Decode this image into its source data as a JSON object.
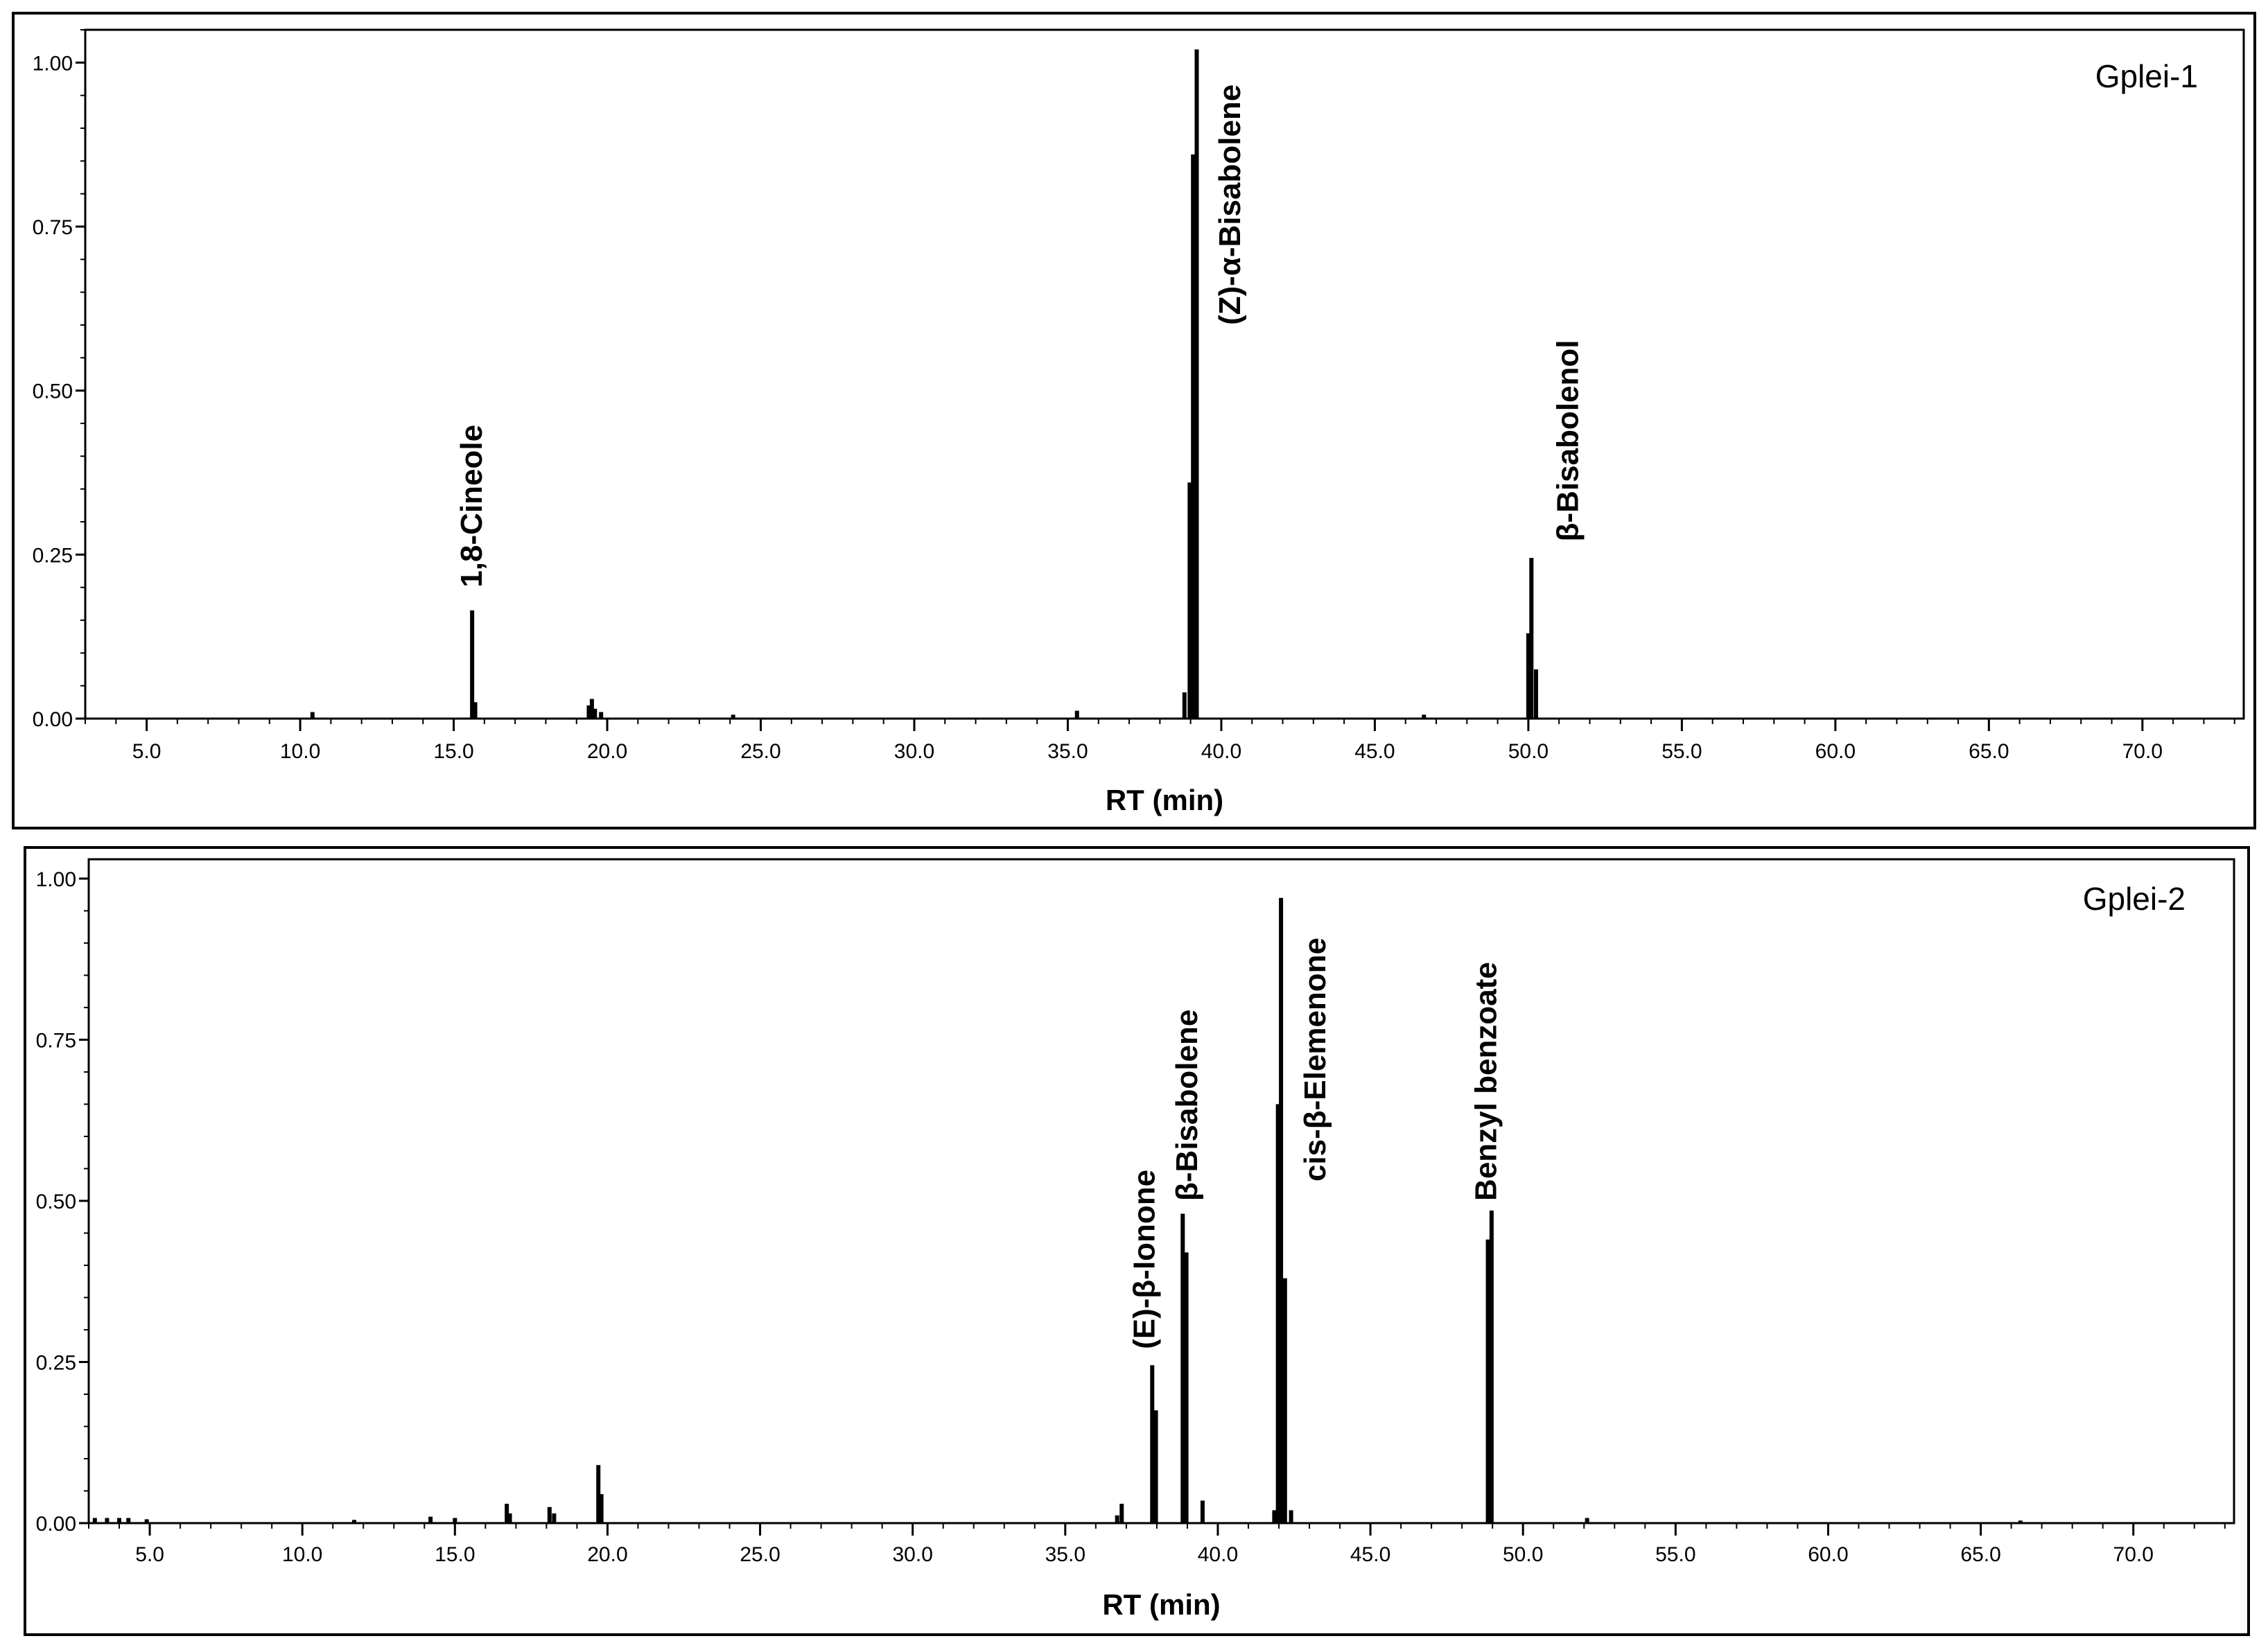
{
  "chart_data": [
    {
      "type": "line",
      "title": "Gplei-1",
      "xlabel": "RT (min)",
      "ylabel": "",
      "xlim": [
        3.0,
        73.3
      ],
      "ylim": [
        0,
        1.05
      ],
      "x_ticks": [
        5.0,
        10.0,
        15.0,
        20.0,
        25.0,
        30.0,
        35.0,
        40.0,
        45.0,
        50.0,
        55.0,
        60.0,
        65.0,
        70.0
      ],
      "x_tick_labels": [
        "5.0",
        "10.0",
        "15.0",
        "20.0",
        "25.0",
        "30.0",
        "35.0",
        "40.0",
        "45.0",
        "50.0",
        "55.0",
        "60.0",
        "65.0",
        "70.0"
      ],
      "y_ticks": [
        0,
        0.25,
        0.5,
        0.75,
        1.0
      ],
      "y_tick_labels": [
        "0.00",
        "0.25",
        "0.50",
        "0.75",
        "1.00"
      ],
      "grid": false,
      "peaks": [
        {
          "x": 10.4,
          "y": 0.01
        },
        {
          "x": 15.6,
          "y": 0.165
        },
        {
          "x": 15.7,
          "y": 0.025
        },
        {
          "x": 19.4,
          "y": 0.02
        },
        {
          "x": 19.5,
          "y": 0.03
        },
        {
          "x": 19.6,
          "y": 0.015
        },
        {
          "x": 19.8,
          "y": 0.01
        },
        {
          "x": 24.1,
          "y": 0.006
        },
        {
          "x": 35.3,
          "y": 0.012
        },
        {
          "x": 38.8,
          "y": 0.04
        },
        {
          "x": 38.97,
          "y": 0.36
        },
        {
          "x": 39.08,
          "y": 0.86
        },
        {
          "x": 39.2,
          "y": 1.02
        },
        {
          "x": 46.6,
          "y": 0.006
        },
        {
          "x": 50.0,
          "y": 0.13
        },
        {
          "x": 50.1,
          "y": 0.245
        },
        {
          "x": 50.25,
          "y": 0.075
        }
      ],
      "annotations": [
        {
          "text": "1,8-Cineole",
          "x": 15.6,
          "y": 0.2
        },
        {
          "text": "(Z)-α-Bisabolene",
          "x": 40.3,
          "y": 0.6
        },
        {
          "text": "β-Bisabolenol",
          "x": 51.3,
          "y": 0.27
        }
      ],
      "legend": {
        "text": "Gplei-1",
        "placement": "top-right"
      }
    },
    {
      "type": "line",
      "title": "Gplei-2",
      "xlabel": "RT (min)",
      "ylabel": "",
      "xlim": [
        3.0,
        73.3
      ],
      "ylim": [
        0,
        1.03
      ],
      "x_ticks": [
        5.0,
        10.0,
        15.0,
        20.0,
        25.0,
        30.0,
        35.0,
        40.0,
        45.0,
        50.0,
        55.0,
        60.0,
        65.0,
        70.0
      ],
      "x_tick_labels": [
        "5.0",
        "10.0",
        "15.0",
        "20.0",
        "25.0",
        "30.0",
        "35.0",
        "40.0",
        "45.0",
        "50.0",
        "55.0",
        "60.0",
        "65.0",
        "70.0"
      ],
      "y_ticks": [
        0,
        0.25,
        0.5,
        0.75,
        1.0
      ],
      "y_tick_labels": [
        "0.00",
        "0.25",
        "0.50",
        "0.75",
        "1.00"
      ],
      "grid": false,
      "peaks": [
        {
          "x": 3.2,
          "y": 0.008
        },
        {
          "x": 3.6,
          "y": 0.008
        },
        {
          "x": 4.0,
          "y": 0.008
        },
        {
          "x": 4.3,
          "y": 0.008
        },
        {
          "x": 4.9,
          "y": 0.006
        },
        {
          "x": 11.7,
          "y": 0.005
        },
        {
          "x": 14.2,
          "y": 0.01
        },
        {
          "x": 15.0,
          "y": 0.008
        },
        {
          "x": 16.7,
          "y": 0.03
        },
        {
          "x": 16.8,
          "y": 0.015
        },
        {
          "x": 18.1,
          "y": 0.025
        },
        {
          "x": 18.25,
          "y": 0.015
        },
        {
          "x": 19.7,
          "y": 0.09
        },
        {
          "x": 19.8,
          "y": 0.045
        },
        {
          "x": 36.7,
          "y": 0.012
        },
        {
          "x": 36.85,
          "y": 0.03
        },
        {
          "x": 37.85,
          "y": 0.245
        },
        {
          "x": 37.97,
          "y": 0.175
        },
        {
          "x": 38.85,
          "y": 0.48
        },
        {
          "x": 38.97,
          "y": 0.42
        },
        {
          "x": 39.5,
          "y": 0.035
        },
        {
          "x": 41.85,
          "y": 0.02
        },
        {
          "x": 41.97,
          "y": 0.65
        },
        {
          "x": 42.07,
          "y": 0.97
        },
        {
          "x": 42.2,
          "y": 0.38
        },
        {
          "x": 42.4,
          "y": 0.02
        },
        {
          "x": 48.85,
          "y": 0.44
        },
        {
          "x": 48.97,
          "y": 0.485
        },
        {
          "x": 52.1,
          "y": 0.008
        },
        {
          "x": 66.3,
          "y": 0.004
        }
      ],
      "annotations": [
        {
          "text": "(E)-β-Ionone",
          "x": 37.6,
          "y": 0.27
        },
        {
          "text": "β-Bisabolene",
          "x": 39.0,
          "y": 0.5
        },
        {
          "text": "cis-β-Elemenone",
          "x": 43.2,
          "y": 0.53
        },
        {
          "text": "Benzyl benzoate",
          "x": 48.8,
          "y": 0.5
        }
      ],
      "legend": {
        "text": "Gplei-2",
        "placement": "top-right"
      }
    }
  ]
}
